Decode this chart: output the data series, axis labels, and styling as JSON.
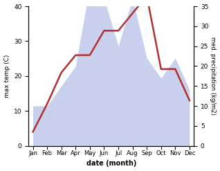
{
  "months": [
    "Jan",
    "Feb",
    "Mar",
    "Apr",
    "May",
    "Jun",
    "Jul",
    "Aug",
    "Sep",
    "Oct",
    "Nov",
    "Dec"
  ],
  "temperature": [
    4,
    12,
    21,
    26,
    26,
    33,
    33,
    38,
    43,
    22,
    22,
    13
  ],
  "precipitation": [
    10,
    10,
    15,
    20,
    40,
    37,
    25,
    37,
    22,
    17,
    22,
    14
  ],
  "temp_color": "#b03030",
  "precip_fill_color": "#c8d0ee",
  "ylim_temp": [
    0,
    40
  ],
  "ylim_precip": [
    0,
    35
  ],
  "yticks_temp": [
    0,
    10,
    20,
    30,
    40
  ],
  "yticks_precip": [
    0,
    5,
    10,
    15,
    20,
    25,
    30,
    35
  ],
  "xlabel": "date (month)",
  "ylabel_left": "max temp (C)",
  "ylabel_right": "med. precipitation (kg/m2)",
  "temp_linewidth": 1.8,
  "background_color": "#ffffff"
}
